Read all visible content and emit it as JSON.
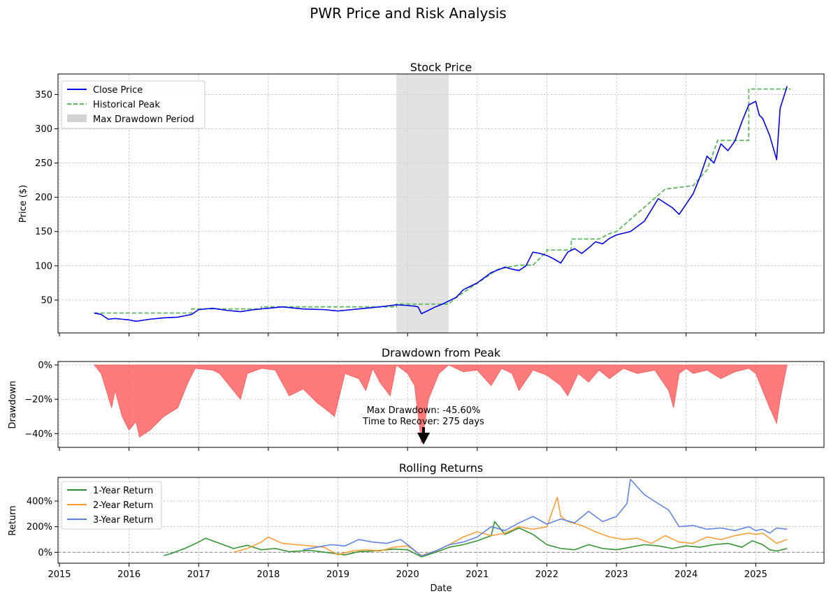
{
  "figure": {
    "title": "PWR Price and Risk Analysis"
  },
  "colors": {
    "close": "#0000ee",
    "peak": "#5cb85c",
    "shade": "#d3d3d3",
    "drawdown": "#ff5a5a",
    "r1": "#2a8f2a",
    "r2": "#ff9a2e",
    "r3": "#5b7fe0",
    "grid": "#b0b0b0",
    "zero": "#888888"
  },
  "chart_data": [
    {
      "type": "line",
      "title": "Stock Price",
      "ylabel": "Price ($)",
      "xlabel": "",
      "xlim": [
        2014.98,
        2025.98
      ],
      "ylim": [
        2,
        380
      ],
      "yticks": [
        50,
        100,
        150,
        200,
        250,
        300,
        350
      ],
      "grid": true,
      "legend": {
        "placement": "top-left",
        "entries": [
          "Close Price",
          "Historical Peak",
          "Max Drawdown Period"
        ]
      },
      "shaded_region": {
        "label": "Max Drawdown Period",
        "x": [
          2019.84,
          2020.59
        ]
      },
      "series": [
        {
          "name": "Close Price",
          "x": [
            2015.5,
            2015.6,
            2015.7,
            2015.8,
            2015.9,
            2016.0,
            2016.1,
            2016.3,
            2016.5,
            2016.7,
            2016.9,
            2017.0,
            2017.2,
            2017.4,
            2017.6,
            2017.8,
            2018.0,
            2018.2,
            2018.5,
            2018.8,
            2019.0,
            2019.2,
            2019.4,
            2019.6,
            2019.84,
            2020.0,
            2020.1,
            2020.15,
            2020.2,
            2020.3,
            2020.4,
            2020.5,
            2020.6,
            2020.7,
            2020.8,
            2020.9,
            2021.0,
            2021.2,
            2021.4,
            2021.5,
            2021.6,
            2021.7,
            2021.8,
            2021.9,
            2022.0,
            2022.1,
            2022.2,
            2022.3,
            2022.4,
            2022.5,
            2022.6,
            2022.7,
            2022.8,
            2022.9,
            2023.0,
            2023.2,
            2023.4,
            2023.6,
            2023.8,
            2023.9,
            2024.0,
            2024.1,
            2024.2,
            2024.3,
            2024.4,
            2024.5,
            2024.6,
            2024.7,
            2024.8,
            2024.9,
            2025.0,
            2025.05,
            2025.1,
            2025.2,
            2025.3,
            2025.35,
            2025.45
          ],
          "y": [
            31,
            29,
            22,
            23,
            22,
            21,
            19,
            22,
            24,
            25,
            29,
            36,
            38,
            35,
            33,
            36,
            38,
            40,
            37,
            36,
            34,
            36,
            38,
            40,
            43,
            42,
            41,
            40,
            30,
            35,
            40,
            44,
            49,
            54,
            65,
            70,
            75,
            90,
            98,
            95,
            93,
            100,
            120,
            118,
            115,
            110,
            104,
            120,
            125,
            118,
            126,
            135,
            132,
            140,
            145,
            150,
            165,
            198,
            185,
            175,
            190,
            205,
            230,
            260,
            250,
            278,
            268,
            282,
            310,
            335,
            340,
            320,
            315,
            290,
            255,
            330,
            362
          ]
        },
        {
          "name": "Historical Peak",
          "x": [
            2015.5,
            2016.9,
            2016.9,
            2017.9,
            2017.9,
            2019.84,
            2019.84,
            2020.59,
            2020.59,
            2020.7,
            2021.3,
            2021.6,
            2021.8,
            2022.0,
            2022.0,
            2022.35,
            2022.35,
            2022.75,
            2022.9,
            2023.0,
            2023.7,
            2024.1,
            2024.3,
            2024.45,
            2024.45,
            2024.9,
            2024.9,
            2025.5
          ],
          "y": [
            31,
            31,
            37,
            37,
            40,
            40,
            44,
            44,
            44,
            54,
            95,
            101,
            101,
            121,
            123,
            123,
            139,
            139,
            147,
            150,
            212,
            217,
            240,
            282,
            283,
            283,
            358,
            358
          ]
        },
        {
          "name": "Max Drawdown Period",
          "x": [
            2019.84,
            2020.59
          ]
        }
      ]
    },
    {
      "type": "area",
      "title": "Drawdown from Peak",
      "ylabel": "Drawdown",
      "xlabel": "",
      "xlim": [
        2014.98,
        2025.98
      ],
      "ylim": [
        -48,
        2
      ],
      "yticks": [
        0,
        -20,
        -40
      ],
      "yticklabels": [
        "0%",
        "−20%",
        "−40%"
      ],
      "grid": true,
      "annotation": {
        "lines": [
          "Max Drawdown: -45.60%",
          "Time to Recover: 275 days"
        ],
        "x": 2020.22,
        "y": -45.6
      },
      "series": [
        {
          "name": "Drawdown",
          "x": [
            2015.5,
            2015.6,
            2015.75,
            2015.8,
            2015.9,
            2016.0,
            2016.1,
            2016.15,
            2016.3,
            2016.5,
            2016.7,
            2016.85,
            2016.95,
            2017.2,
            2017.3,
            2017.4,
            2017.6,
            2017.7,
            2017.9,
            2018.1,
            2018.3,
            2018.5,
            2018.7,
            2018.8,
            2018.95,
            2019.1,
            2019.3,
            2019.4,
            2019.5,
            2019.6,
            2019.75,
            2019.84,
            2020.0,
            2020.1,
            2020.2,
            2020.3,
            2020.45,
            2020.59,
            2020.8,
            2021.0,
            2021.2,
            2021.35,
            2021.5,
            2021.6,
            2021.8,
            2022.0,
            2022.2,
            2022.3,
            2022.45,
            2022.6,
            2022.75,
            2022.9,
            2023.1,
            2023.3,
            2023.55,
            2023.75,
            2023.82,
            2023.9,
            2024.0,
            2024.1,
            2024.3,
            2024.5,
            2024.7,
            2024.9,
            2025.0,
            2025.1,
            2025.2,
            2025.3,
            2025.35,
            2025.45
          ],
          "y": [
            0,
            -5,
            -25,
            -15,
            -30,
            -38,
            -33,
            -42,
            -38,
            -30,
            -25,
            -10,
            -2,
            -3,
            -5,
            -10,
            -20,
            -5,
            -2,
            -3,
            -18,
            -14,
            -22,
            -25,
            -30,
            -5,
            -8,
            -15,
            -2,
            -10,
            -18,
            0,
            -5,
            -12,
            -45.6,
            -20,
            -5,
            0,
            -4,
            -3,
            -12,
            -2,
            -5,
            -15,
            -3,
            -6,
            -12,
            -18,
            -5,
            -10,
            -3,
            -8,
            -2,
            -5,
            -3,
            -15,
            -25,
            -5,
            -2,
            -5,
            -3,
            -8,
            -4,
            -2,
            -5,
            -15,
            -25,
            -34,
            -20,
            0
          ]
        }
      ]
    },
    {
      "type": "line",
      "title": "Rolling Returns",
      "ylabel": "Return",
      "xlabel": "Date",
      "xlim": [
        2014.98,
        2025.98
      ],
      "ylim": [
        -85,
        585
      ],
      "yticks": [
        0,
        200,
        400
      ],
      "yticklabels": [
        "0%",
        "200%",
        "400%"
      ],
      "xticks": [
        2015,
        2016,
        2017,
        2018,
        2019,
        2020,
        2021,
        2022,
        2023,
        2024,
        2025
      ],
      "grid": true,
      "legend": {
        "placement": "top-left",
        "entries": [
          "1-Year Return",
          "2-Year Return",
          "3-Year Return"
        ]
      },
      "series": [
        {
          "name": "1-Year Return",
          "x": [
            2016.5,
            2016.6,
            2016.8,
            2017.0,
            2017.1,
            2017.3,
            2017.5,
            2017.7,
            2017.9,
            2018.1,
            2018.3,
            2018.6,
            2018.9,
            2019.1,
            2019.3,
            2019.5,
            2019.8,
            2020.0,
            2020.2,
            2020.4,
            2020.6,
            2020.8,
            2021.0,
            2021.2,
            2021.25,
            2021.4,
            2021.6,
            2021.8,
            2022.0,
            2022.2,
            2022.4,
            2022.6,
            2022.8,
            2023.0,
            2023.2,
            2023.4,
            2023.6,
            2023.8,
            2024.0,
            2024.2,
            2024.4,
            2024.6,
            2024.8,
            2024.95,
            2025.1,
            2025.2,
            2025.3,
            2025.45
          ],
          "y": [
            -25,
            -10,
            30,
            80,
            110,
            70,
            30,
            55,
            20,
            30,
            5,
            15,
            -5,
            -20,
            5,
            10,
            25,
            20,
            -35,
            0,
            40,
            60,
            90,
            130,
            240,
            140,
            190,
            140,
            60,
            30,
            20,
            60,
            30,
            20,
            40,
            60,
            50,
            30,
            50,
            40,
            60,
            70,
            40,
            90,
            60,
            20,
            10,
            30
          ]
        },
        {
          "name": "2-Year Return",
          "x": [
            2017.5,
            2017.7,
            2017.9,
            2018.0,
            2018.2,
            2018.4,
            2018.6,
            2018.8,
            2019.0,
            2019.2,
            2019.4,
            2019.6,
            2019.8,
            2020.0,
            2020.2,
            2020.4,
            2020.6,
            2020.8,
            2021.0,
            2021.2,
            2021.4,
            2021.6,
            2021.8,
            2022.0,
            2022.15,
            2022.2,
            2022.3,
            2022.5,
            2022.7,
            2022.9,
            2023.1,
            2023.3,
            2023.5,
            2023.7,
            2023.9,
            2024.1,
            2024.3,
            2024.5,
            2024.7,
            2024.9,
            2025.0,
            2025.1,
            2025.2,
            2025.3,
            2025.45
          ],
          "y": [
            0,
            30,
            80,
            120,
            70,
            60,
            50,
            40,
            -20,
            10,
            20,
            10,
            40,
            50,
            -25,
            10,
            60,
            120,
            160,
            130,
            150,
            200,
            180,
            200,
            430,
            280,
            240,
            210,
            160,
            120,
            100,
            110,
            70,
            130,
            80,
            70,
            120,
            100,
            130,
            150,
            140,
            150,
            110,
            70,
            100
          ]
        },
        {
          "name": "3-Year Return",
          "x": [
            2018.5,
            2018.7,
            2018.9,
            2019.1,
            2019.3,
            2019.5,
            2019.7,
            2019.9,
            2020.0,
            2020.2,
            2020.4,
            2020.6,
            2020.8,
            2021.0,
            2021.2,
            2021.4,
            2021.6,
            2021.8,
            2022.0,
            2022.2,
            2022.4,
            2022.6,
            2022.8,
            2023.0,
            2023.15,
            2023.2,
            2023.4,
            2023.6,
            2023.75,
            2023.9,
            2024.1,
            2024.3,
            2024.5,
            2024.7,
            2024.9,
            2025.0,
            2025.1,
            2025.2,
            2025.3,
            2025.45
          ],
          "y": [
            20,
            40,
            60,
            50,
            100,
            80,
            70,
            100,
            60,
            -30,
            10,
            60,
            80,
            120,
            200,
            170,
            230,
            280,
            220,
            260,
            230,
            320,
            240,
            280,
            380,
            570,
            450,
            380,
            330,
            200,
            210,
            180,
            190,
            170,
            200,
            170,
            180,
            150,
            190,
            180
          ]
        }
      ]
    }
  ]
}
